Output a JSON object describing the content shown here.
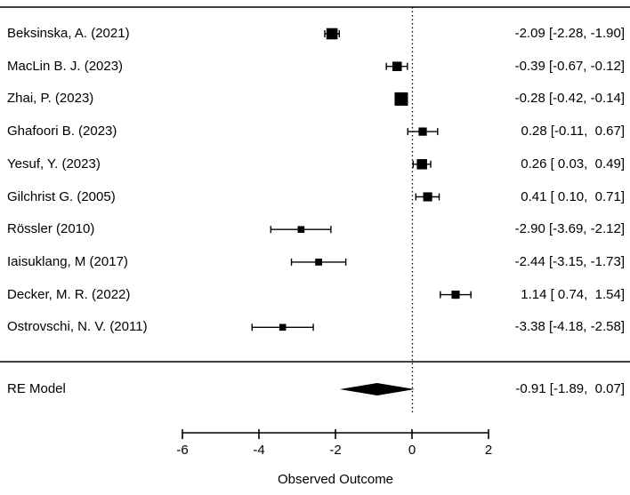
{
  "chart_data": {
    "type": "forest",
    "title": "",
    "xlabel": "Observed Outcome",
    "xlim": [
      -6,
      2
    ],
    "x_ticks": [
      -6,
      -4,
      -2,
      0,
      2
    ],
    "reference_line": 0,
    "grid": false,
    "colors": {
      "ink": "#000000",
      "background": "#ffffff"
    },
    "studies": [
      {
        "label": "Beksinska, A. (2021)",
        "estimate": -2.09,
        "ci_low": -2.28,
        "ci_high": -1.9,
        "annotation": "-2.09 [-2.28, -1.90]"
      },
      {
        "label": "MacLin B. J. (2023)",
        "estimate": -0.39,
        "ci_low": -0.67,
        "ci_high": -0.12,
        "annotation": "-0.39 [-0.67, -0.12]"
      },
      {
        "label": "Zhai, P. (2023)",
        "estimate": -0.28,
        "ci_low": -0.42,
        "ci_high": -0.14,
        "annotation": "-0.28 [-0.42, -0.14]"
      },
      {
        "label": "Ghafoori B. (2023)",
        "estimate": 0.28,
        "ci_low": -0.11,
        "ci_high": 0.67,
        "annotation": "0.28 [-0.11,  0.67]"
      },
      {
        "label": "Yesuf, Y. (2023)",
        "estimate": 0.26,
        "ci_low": 0.03,
        "ci_high": 0.49,
        "annotation": "0.26 [ 0.03,  0.49]"
      },
      {
        "label": "Gilchrist G. (2005)",
        "estimate": 0.41,
        "ci_low": 0.1,
        "ci_high": 0.71,
        "annotation": "0.41 [ 0.10,  0.71]"
      },
      {
        "label": "Rössler (2010)",
        "estimate": -2.9,
        "ci_low": -3.69,
        "ci_high": -2.12,
        "annotation": "-2.90 [-3.69, -2.12]"
      },
      {
        "label": "Iaisuklang, M (2017)",
        "estimate": -2.44,
        "ci_low": -3.15,
        "ci_high": -1.73,
        "annotation": "-2.44 [-3.15, -1.73]"
      },
      {
        "label": "Decker, M. R. (2022)",
        "estimate": 1.14,
        "ci_low": 0.74,
        "ci_high": 1.54,
        "annotation": "1.14 [ 0.74,  1.54]"
      },
      {
        "label": "Ostrovschi, N. V. (2011)",
        "estimate": -3.38,
        "ci_low": -4.18,
        "ci_high": -2.58,
        "annotation": "-3.38 [-4.18, -2.58]"
      }
    ],
    "summary": {
      "label": "RE Model",
      "estimate": -0.91,
      "ci_low": -1.89,
      "ci_high": 0.07,
      "annotation": "-0.91 [-1.89,  0.07]"
    }
  }
}
